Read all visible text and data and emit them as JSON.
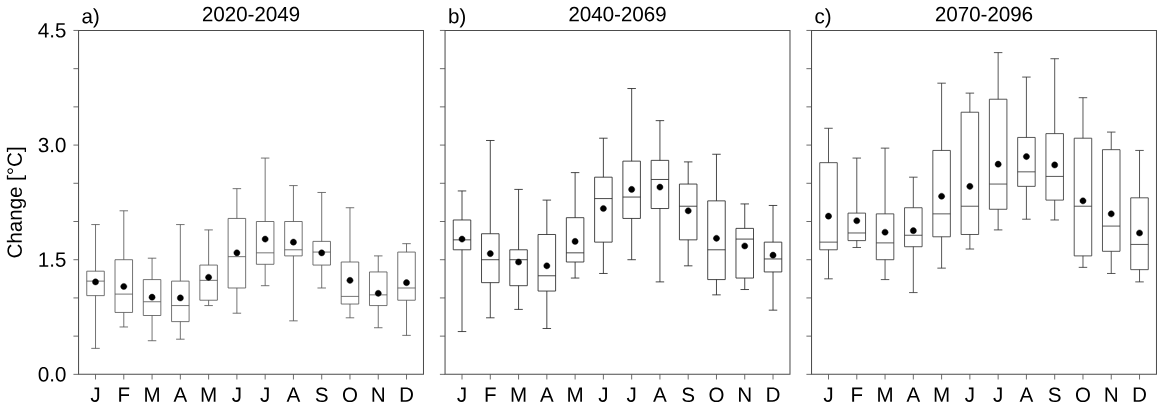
{
  "chart_data": [
    {
      "type": "box",
      "title": "2020-2049",
      "annotations": [
        "a)"
      ],
      "ylabel": "Change [°C]",
      "color": "#555555",
      "categories": [
        "J",
        "F",
        "M",
        "A",
        "M",
        "J",
        "J",
        "A",
        "S",
        "O",
        "N",
        "D"
      ],
      "ylim": [
        0,
        4.5
      ],
      "yticks": [
        "0.0",
        {
          "value": 0.5,
          "label": null
        },
        {
          "value": 1,
          "label": null
        },
        {
          "value": 1.5,
          "label": "1.5"
        },
        {
          "value": 2,
          "label": null
        },
        {
          "value": 2.5,
          "label": null
        },
        {
          "value": 3,
          "label": "3.0"
        },
        {
          "value": 3.5,
          "label": null
        },
        {
          "value": 4,
          "label": null
        },
        {
          "value": 4.5,
          "label": "4.5"
        }
      ],
      "boxes": [
        {
          "low": 0.34,
          "q1": 1.03,
          "median": 1.22,
          "q3": 1.35,
          "high": 1.96,
          "mean": 1.21
        },
        {
          "low": 0.62,
          "q1": 0.81,
          "median": 1.05,
          "q3": 1.5,
          "high": 2.14,
          "mean": 1.15
        },
        {
          "low": 0.44,
          "q1": 0.77,
          "median": 0.95,
          "q3": 1.24,
          "high": 1.52,
          "mean": 1.01
        },
        {
          "low": 0.46,
          "q1": 0.69,
          "median": 0.9,
          "q3": 1.22,
          "high": 1.96,
          "mean": 1.0
        },
        {
          "low": 0.9,
          "q1": 0.97,
          "median": 1.23,
          "q3": 1.43,
          "high": 1.89,
          "mean": 1.27
        },
        {
          "low": 0.8,
          "q1": 1.13,
          "median": 1.54,
          "q3": 2.04,
          "high": 2.43,
          "mean": 1.59
        },
        {
          "low": 1.16,
          "q1": 1.44,
          "median": 1.59,
          "q3": 2.0,
          "high": 2.83,
          "mean": 1.77
        },
        {
          "low": 0.7,
          "q1": 1.55,
          "median": 1.63,
          "q3": 2.0,
          "high": 2.47,
          "mean": 1.73
        },
        {
          "low": 1.13,
          "q1": 1.43,
          "median": 1.6,
          "q3": 1.74,
          "high": 2.38,
          "mean": 1.59
        },
        {
          "low": 0.74,
          "q1": 0.92,
          "median": 1.02,
          "q3": 1.47,
          "high": 2.18,
          "mean": 1.23
        },
        {
          "low": 0.61,
          "q1": 0.9,
          "median": 1.04,
          "q3": 1.34,
          "high": 1.55,
          "mean": 1.06
        },
        {
          "low": 0.51,
          "q1": 0.97,
          "median": 1.13,
          "q3": 1.6,
          "high": 1.71,
          "mean": 1.2
        }
      ]
    },
    {
      "type": "box",
      "title": "2040-2069",
      "annotations": [
        "b)"
      ],
      "color": "#222222",
      "tick_labels": "x",
      "categories": [
        "J",
        "F",
        "M",
        "A",
        "M",
        "J",
        "J",
        "A",
        "S",
        "O",
        "N",
        "D"
      ],
      "ylim": [
        0,
        4.5
      ],
      "yticks": [
        {
          "value": 0,
          "label": null
        },
        {
          "value": 0.5,
          "label": null
        },
        {
          "value": 1,
          "label": null
        },
        {
          "value": 1.5,
          "label": null
        },
        {
          "value": 2,
          "label": null
        },
        {
          "value": 2.5,
          "label": null
        },
        {
          "value": 3,
          "label": null
        },
        {
          "value": 3.5,
          "label": null
        },
        {
          "value": 4,
          "label": null
        },
        {
          "value": 4.5,
          "label": null
        }
      ],
      "boxes": [
        {
          "low": 0.56,
          "q1": 1.63,
          "median": 1.76,
          "q3": 2.02,
          "high": 2.4,
          "mean": 1.77
        },
        {
          "low": 0.74,
          "q1": 1.2,
          "median": 1.5,
          "q3": 1.84,
          "high": 3.06,
          "mean": 1.58
        },
        {
          "low": 0.85,
          "q1": 1.16,
          "median": 1.5,
          "q3": 1.63,
          "high": 2.42,
          "mean": 1.47
        },
        {
          "low": 0.6,
          "q1": 1.09,
          "median": 1.29,
          "q3": 1.83,
          "high": 2.28,
          "mean": 1.42
        },
        {
          "low": 1.26,
          "q1": 1.47,
          "median": 1.59,
          "q3": 2.05,
          "high": 2.64,
          "mean": 1.74
        },
        {
          "low": 1.32,
          "q1": 1.73,
          "median": 2.3,
          "q3": 2.58,
          "high": 3.09,
          "mean": 2.17
        },
        {
          "low": 1.5,
          "q1": 2.04,
          "median": 2.32,
          "q3": 2.79,
          "high": 3.74,
          "mean": 2.42
        },
        {
          "low": 1.21,
          "q1": 2.17,
          "median": 2.55,
          "q3": 2.8,
          "high": 3.32,
          "mean": 2.45
        },
        {
          "low": 1.42,
          "q1": 1.76,
          "median": 2.2,
          "q3": 2.49,
          "high": 2.78,
          "mean": 2.14
        },
        {
          "low": 1.04,
          "q1": 1.24,
          "median": 1.63,
          "q3": 2.27,
          "high": 2.88,
          "mean": 1.78
        },
        {
          "low": 1.11,
          "q1": 1.26,
          "median": 1.77,
          "q3": 1.91,
          "high": 2.23,
          "mean": 1.68
        },
        {
          "low": 0.84,
          "q1": 1.34,
          "median": 1.51,
          "q3": 1.73,
          "high": 2.21,
          "mean": 1.56
        }
      ]
    },
    {
      "type": "box",
      "title": "2070-2096",
      "annotations": [
        "c)"
      ],
      "color": "#333333",
      "tick_labels": "x",
      "categories": [
        "J",
        "F",
        "M",
        "A",
        "M",
        "J",
        "J",
        "A",
        "S",
        "O",
        "N",
        "D"
      ],
      "ylim": [
        0,
        4.5
      ],
      "yticks": [
        {
          "value": 0,
          "label": null
        },
        {
          "value": 0.5,
          "label": null
        },
        {
          "value": 1,
          "label": null
        },
        {
          "value": 1.5,
          "label": null
        },
        {
          "value": 2,
          "label": null
        },
        {
          "value": 2.5,
          "label": null
        },
        {
          "value": 3,
          "label": null
        },
        {
          "value": 3.5,
          "label": null
        },
        {
          "value": 4,
          "label": null
        },
        {
          "value": 4.5,
          "label": null
        }
      ],
      "boxes": [
        {
          "low": 1.25,
          "q1": 1.63,
          "median": 1.73,
          "q3": 2.77,
          "high": 3.22,
          "mean": 2.07
        },
        {
          "low": 1.66,
          "q1": 1.75,
          "median": 1.85,
          "q3": 2.11,
          "high": 2.83,
          "mean": 2.01
        },
        {
          "low": 1.24,
          "q1": 1.5,
          "median": 1.72,
          "q3": 2.1,
          "high": 2.96,
          "mean": 1.86
        },
        {
          "low": 1.07,
          "q1": 1.67,
          "median": 1.82,
          "q3": 2.18,
          "high": 2.58,
          "mean": 1.88
        },
        {
          "low": 1.39,
          "q1": 1.8,
          "median": 2.1,
          "q3": 2.93,
          "high": 3.81,
          "mean": 2.33
        },
        {
          "low": 1.64,
          "q1": 1.83,
          "median": 2.2,
          "q3": 3.43,
          "high": 3.68,
          "mean": 2.46
        },
        {
          "low": 1.89,
          "q1": 2.16,
          "median": 2.49,
          "q3": 3.6,
          "high": 4.21,
          "mean": 2.75
        },
        {
          "low": 2.03,
          "q1": 2.46,
          "median": 2.65,
          "q3": 3.1,
          "high": 3.89,
          "mean": 2.85
        },
        {
          "low": 2.02,
          "q1": 2.28,
          "median": 2.59,
          "q3": 3.15,
          "high": 4.13,
          "mean": 2.74
        },
        {
          "low": 1.4,
          "q1": 1.55,
          "median": 2.2,
          "q3": 3.09,
          "high": 3.62,
          "mean": 2.27
        },
        {
          "low": 1.32,
          "q1": 1.61,
          "median": 1.94,
          "q3": 2.94,
          "high": 3.17,
          "mean": 2.1
        },
        {
          "low": 1.21,
          "q1": 1.37,
          "median": 1.7,
          "q3": 2.31,
          "high": 2.93,
          "mean": 1.85
        }
      ]
    }
  ]
}
